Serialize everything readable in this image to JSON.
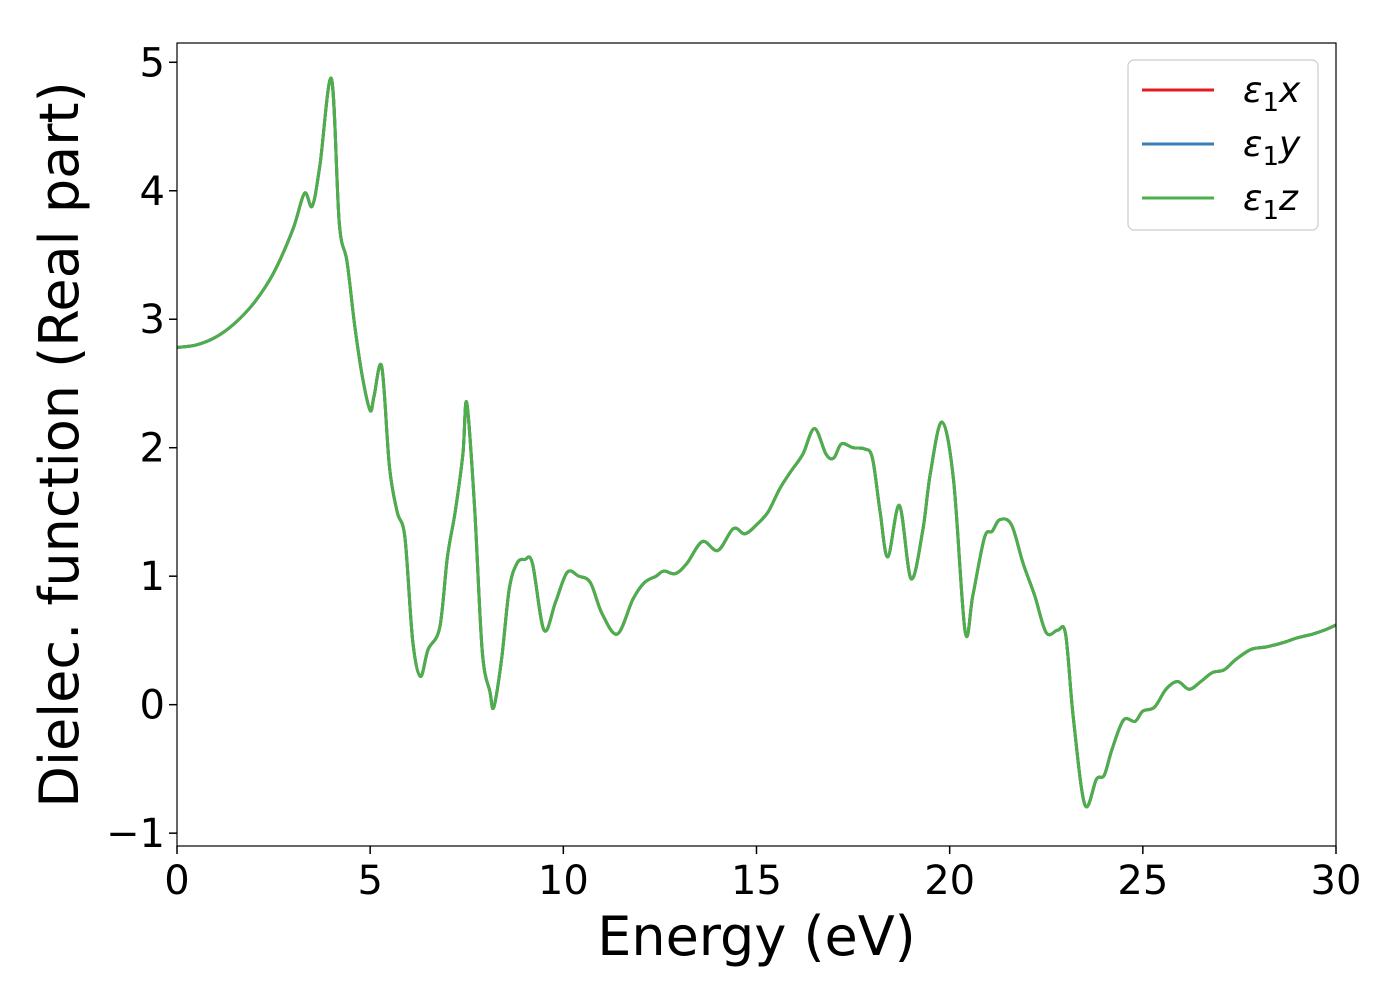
{
  "chart_data": {
    "type": "line",
    "title": "",
    "xlabel": "Energy (eV)",
    "ylabel": "Dielec. function (Real part)",
    "xlim": [
      0,
      30
    ],
    "ylim": [
      -1.1,
      5.15
    ],
    "xticks": [
      0,
      5,
      10,
      15,
      20,
      25,
      30
    ],
    "xtick_labels": [
      "0",
      "5",
      "10",
      "15",
      "20",
      "25",
      "30"
    ],
    "yticks": [
      -1,
      0,
      1,
      2,
      3,
      4,
      5
    ],
    "ytick_labels": [
      "−1",
      "0",
      "1",
      "2",
      "3",
      "4",
      "5"
    ],
    "grid": false,
    "legend_position": "top-right",
    "x": [
      0,
      0.5,
      1,
      1.5,
      2,
      2.5,
      3,
      3.3,
      3.5,
      3.7,
      4.0,
      4.2,
      4.4,
      4.6,
      4.8,
      5.0,
      5.1,
      5.3,
      5.5,
      5.7,
      5.9,
      6.1,
      6.3,
      6.5,
      6.8,
      7.0,
      7.2,
      7.4,
      7.5,
      7.7,
      7.9,
      8.1,
      8.2,
      8.4,
      8.6,
      8.8,
      9.0,
      9.2,
      9.5,
      9.8,
      10.1,
      10.4,
      10.7,
      11.0,
      11.4,
      11.8,
      12.1,
      12.4,
      12.6,
      12.9,
      13.2,
      13.6,
      14.0,
      14.4,
      14.7,
      15.0,
      15.3,
      15.6,
      15.9,
      16.2,
      16.5,
      16.8,
      17.0,
      17.2,
      17.5,
      17.8,
      18.0,
      18.2,
      18.4,
      18.7,
      19.0,
      19.3,
      19.5,
      19.8,
      20.1,
      20.4,
      20.6,
      20.9,
      21.1,
      21.3,
      21.6,
      21.9,
      22.2,
      22.5,
      22.8,
      23.0,
      23.2,
      23.5,
      23.8,
      24.0,
      24.2,
      24.5,
      24.8,
      25.0,
      25.3,
      25.6,
      25.9,
      26.2,
      26.5,
      26.8,
      27.1,
      27.4,
      27.8,
      28.2,
      28.6,
      29.0,
      29.4,
      29.7,
      30.0
    ],
    "series": [
      {
        "name": "ε₁x",
        "color": "#e41a1c",
        "values": [
          2.78,
          2.8,
          2.86,
          2.97,
          3.13,
          3.36,
          3.7,
          3.98,
          3.88,
          4.2,
          4.87,
          3.75,
          3.45,
          2.95,
          2.55,
          2.29,
          2.4,
          2.63,
          1.85,
          1.5,
          1.3,
          0.5,
          0.22,
          0.43,
          0.6,
          1.15,
          1.5,
          1.95,
          2.35,
          1.55,
          0.42,
          0.1,
          -0.02,
          0.35,
          0.9,
          1.1,
          1.13,
          1.1,
          0.58,
          0.8,
          1.03,
          1.0,
          0.95,
          0.71,
          0.55,
          0.82,
          0.95,
          1.0,
          1.04,
          1.02,
          1.1,
          1.27,
          1.2,
          1.37,
          1.33,
          1.4,
          1.5,
          1.68,
          1.82,
          1.95,
          2.15,
          1.95,
          1.92,
          2.03,
          2.0,
          1.99,
          1.92,
          1.5,
          1.15,
          1.55,
          0.98,
          1.35,
          1.8,
          2.2,
          1.75,
          0.57,
          0.85,
          1.3,
          1.35,
          1.44,
          1.4,
          1.1,
          0.85,
          0.56,
          0.58,
          0.55,
          -0.1,
          -0.78,
          -0.58,
          -0.55,
          -0.35,
          -0.12,
          -0.13,
          -0.05,
          -0.02,
          0.12,
          0.18,
          0.12,
          0.18,
          0.25,
          0.27,
          0.35,
          0.43,
          0.45,
          0.48,
          0.52,
          0.55,
          0.58,
          0.62
        ]
      },
      {
        "name": "ε₁y",
        "color": "#377eb8",
        "values": [
          2.78,
          2.8,
          2.86,
          2.97,
          3.13,
          3.36,
          3.7,
          3.98,
          3.88,
          4.2,
          4.87,
          3.75,
          3.45,
          2.95,
          2.55,
          2.29,
          2.4,
          2.63,
          1.85,
          1.5,
          1.3,
          0.5,
          0.22,
          0.43,
          0.6,
          1.15,
          1.5,
          1.95,
          2.35,
          1.55,
          0.42,
          0.1,
          -0.02,
          0.35,
          0.9,
          1.1,
          1.13,
          1.1,
          0.58,
          0.8,
          1.03,
          1.0,
          0.95,
          0.71,
          0.55,
          0.82,
          0.95,
          1.0,
          1.04,
          1.02,
          1.1,
          1.27,
          1.2,
          1.37,
          1.33,
          1.4,
          1.5,
          1.68,
          1.82,
          1.95,
          2.15,
          1.95,
          1.92,
          2.03,
          2.0,
          1.99,
          1.92,
          1.5,
          1.15,
          1.55,
          0.98,
          1.35,
          1.8,
          2.2,
          1.75,
          0.57,
          0.85,
          1.3,
          1.35,
          1.44,
          1.4,
          1.1,
          0.85,
          0.56,
          0.58,
          0.55,
          -0.1,
          -0.78,
          -0.58,
          -0.55,
          -0.35,
          -0.12,
          -0.13,
          -0.05,
          -0.02,
          0.12,
          0.18,
          0.12,
          0.18,
          0.25,
          0.27,
          0.35,
          0.43,
          0.45,
          0.48,
          0.52,
          0.55,
          0.58,
          0.62
        ]
      },
      {
        "name": "ε₁z",
        "color": "#4daf4a",
        "values": [
          2.78,
          2.8,
          2.86,
          2.97,
          3.13,
          3.36,
          3.7,
          3.98,
          3.88,
          4.2,
          4.87,
          3.75,
          3.45,
          2.95,
          2.55,
          2.29,
          2.4,
          2.63,
          1.85,
          1.5,
          1.3,
          0.5,
          0.22,
          0.43,
          0.6,
          1.15,
          1.5,
          1.95,
          2.35,
          1.55,
          0.42,
          0.1,
          -0.02,
          0.35,
          0.9,
          1.1,
          1.13,
          1.1,
          0.58,
          0.8,
          1.03,
          1.0,
          0.95,
          0.71,
          0.55,
          0.82,
          0.95,
          1.0,
          1.04,
          1.02,
          1.1,
          1.27,
          1.2,
          1.37,
          1.33,
          1.4,
          1.5,
          1.68,
          1.82,
          1.95,
          2.15,
          1.95,
          1.92,
          2.03,
          2.0,
          1.99,
          1.92,
          1.5,
          1.15,
          1.55,
          0.98,
          1.35,
          1.8,
          2.2,
          1.75,
          0.57,
          0.85,
          1.3,
          1.35,
          1.44,
          1.4,
          1.1,
          0.85,
          0.56,
          0.58,
          0.55,
          -0.1,
          -0.78,
          -0.58,
          -0.55,
          -0.35,
          -0.12,
          -0.13,
          -0.05,
          -0.02,
          0.12,
          0.18,
          0.12,
          0.18,
          0.25,
          0.27,
          0.35,
          0.43,
          0.45,
          0.48,
          0.52,
          0.55,
          0.58,
          0.62
        ]
      }
    ],
    "legend": [
      {
        "base": "ε",
        "sub": "1",
        "var": "x"
      },
      {
        "base": "ε",
        "sub": "1",
        "var": "y"
      },
      {
        "base": "ε",
        "sub": "1",
        "var": "z"
      }
    ]
  }
}
